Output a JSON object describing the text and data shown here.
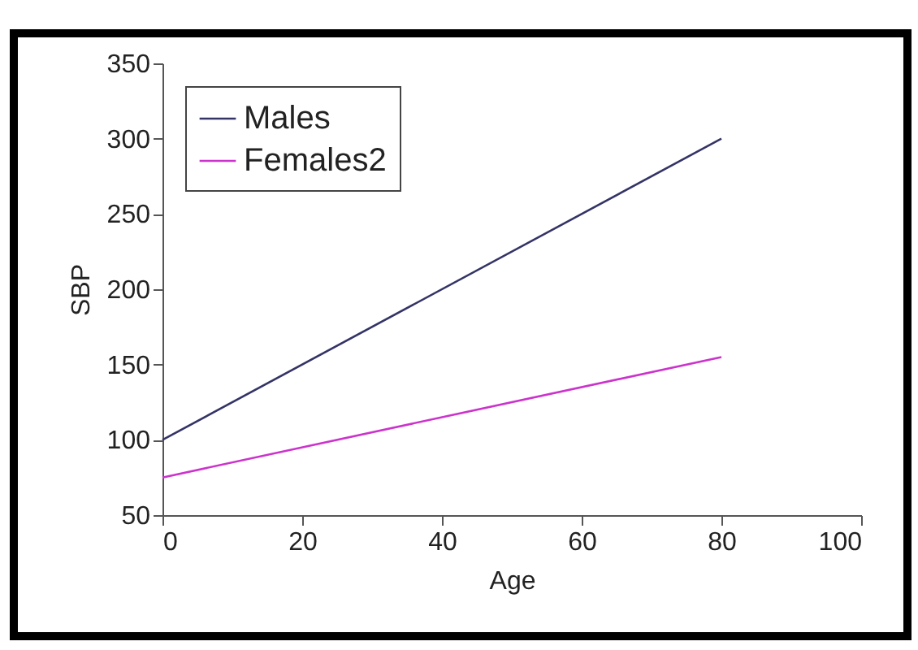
{
  "chart_data": {
    "type": "line",
    "xlabel": "Age",
    "ylabel": "SBP",
    "x": [
      0,
      80
    ],
    "series": [
      {
        "name": "Males",
        "color": "#333366",
        "values": [
          100,
          300
        ]
      },
      {
        "name": "Females2",
        "color": "#cc33cc",
        "values": [
          75,
          155
        ]
      }
    ],
    "xlim": [
      0,
      100
    ],
    "xticks": [
      0,
      20,
      40,
      60,
      80,
      100
    ],
    "ylim": [
      50,
      350
    ],
    "yticks": [
      50,
      100,
      150,
      200,
      250,
      300,
      350
    ],
    "grid": false,
    "legend": "top left",
    "marker": "none",
    "line_style": "solid"
  }
}
